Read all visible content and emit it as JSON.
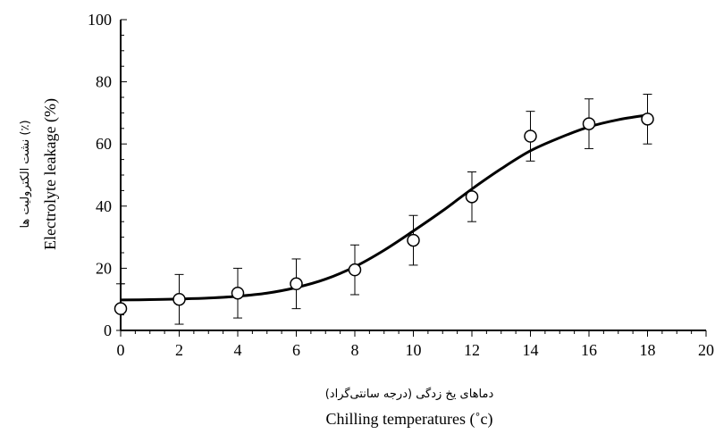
{
  "chart_data": {
    "type": "scatter",
    "title": "",
    "xlabel": "Chilling temperatures (˚c)",
    "xlabel_secondary": "دماهای یخ زدگی (درجه سانتی‌گراد)",
    "ylabel": "Electrolyte leakage (%)",
    "ylabel_secondary": "نشت الکترولیت ها (٪)",
    "xlim": [
      0,
      20
    ],
    "ylim": [
      0,
      100
    ],
    "xticks": [
      "0",
      "2",
      "4",
      "6",
      "8",
      "10",
      "12",
      "14",
      "16",
      "18",
      "20"
    ],
    "yticks": [
      "0",
      "20",
      "40",
      "60",
      "80",
      "100"
    ],
    "grid": false,
    "legend": "none",
    "series": [
      {
        "x": [
          0,
          2,
          4,
          6,
          8,
          10,
          12,
          14,
          16,
          18
        ],
        "y": [
          7,
          10,
          12,
          15,
          19.5,
          29,
          43,
          62.5,
          66.5,
          68
        ],
        "error": [
          8,
          8,
          8,
          8,
          8,
          8,
          8,
          8,
          8,
          8
        ],
        "marker": "open-circle"
      }
    ],
    "fit_curve": {
      "type": "sigmoid",
      "x": [
        0,
        1,
        2,
        3,
        4,
        5,
        6,
        7,
        8,
        9,
        10,
        11,
        12,
        13,
        14,
        15,
        16,
        17,
        18
      ],
      "y": [
        9.8,
        9.9,
        10.1,
        10.4,
        11,
        12,
        13.8,
        16.5,
        20.5,
        25.8,
        32,
        38.5,
        45.5,
        52,
        57.8,
        62,
        65.5,
        67.8,
        69.3
      ]
    },
    "colors": {
      "line": "#000000",
      "marker_fill": "#ffffff",
      "axis": "#000000"
    }
  }
}
